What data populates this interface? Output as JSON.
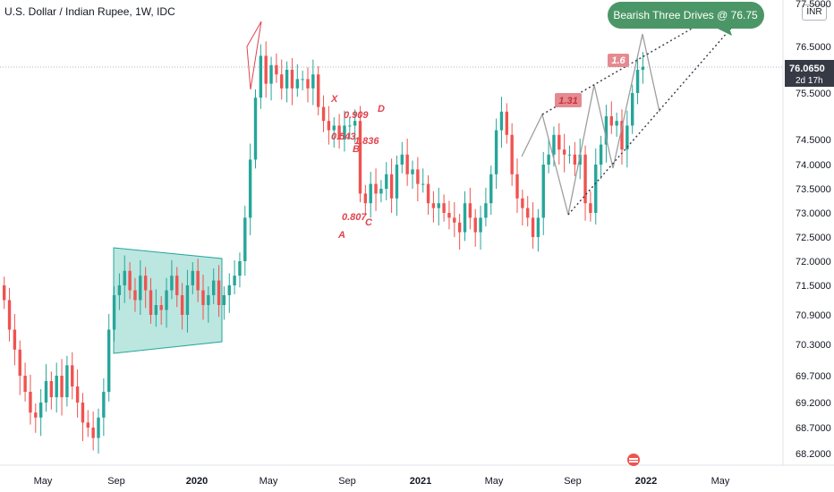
{
  "header": {
    "title": "U.S. Dollar / Indian Rupee, 1W, IDC",
    "currency": "INR"
  },
  "callout": {
    "text": "Bearish Three Drives @ 76.75",
    "color": "#4b9666"
  },
  "current_price": {
    "value": "76.0650",
    "countdown": "2d 17h",
    "color": "#363a45"
  },
  "colors": {
    "up": "#26a69a",
    "down": "#ef5350",
    "label": "#e0434f",
    "box": "#8fd6cc",
    "drive_line": "#9e9e9e"
  },
  "pattern_labels": {
    "X": "X",
    "A": "A",
    "B": "B",
    "C": "C",
    "D": "D",
    "r_xb": "0.909",
    "r_ab": "0.543",
    "r_bc": "0.807",
    "r_cd": "1.836",
    "drive_ratio1": "1.31",
    "drive_ratio2": "1.6"
  },
  "chart_data": {
    "type": "candlestick",
    "symbol": "USDINR",
    "interval": "1W",
    "y_axis": {
      "ticks": [
        "77.5000",
        "76.5000",
        "75.5000",
        "74.5000",
        "74.0000",
        "73.5000",
        "73.0000",
        "72.5000",
        "72.0000",
        "71.5000",
        "70.9000",
        "70.3000",
        "69.7000",
        "69.2000",
        "68.7000",
        "68.2000"
      ],
      "ylim": [
        68.0,
        77.7
      ]
    },
    "x_axis": {
      "ticks": [
        "May",
        "Sep",
        "2020",
        "May",
        "Sep",
        "2021",
        "May",
        "Sep",
        "2022",
        "May"
      ]
    },
    "closes": [
      71.2,
      70.6,
      70.2,
      69.7,
      69.4,
      69.0,
      68.9,
      69.2,
      69.6,
      69.3,
      69.7,
      69.3,
      69.9,
      69.5,
      69.2,
      68.8,
      68.7,
      68.5,
      68.9,
      69.4,
      70.6,
      71.3,
      71.5,
      71.8,
      71.4,
      71.2,
      71.7,
      71.4,
      70.9,
      71.1,
      71.0,
      71.4,
      71.7,
      71.3,
      70.9,
      71.5,
      71.8,
      71.4,
      71.1,
      71.3,
      71.6,
      71.1,
      71.3,
      71.5,
      71.7,
      72.0,
      72.9,
      74.1,
      75.4,
      76.3,
      75.7,
      76.1,
      75.9,
      75.6,
      76.0,
      75.6,
      75.8,
      75.8,
      75.6,
      75.9,
      75.2,
      74.9,
      74.7,
      74.8,
      74.5,
      74.8,
      74.8,
      74.9,
      73.4,
      73.2,
      73.6,
      73.4,
      73.5,
      73.8,
      73.3,
      74.0,
      74.2,
      73.8,
      73.9,
      73.6,
      73.6,
      73.2,
      73.1,
      73.2,
      73.0,
      72.9,
      72.8,
      72.6,
      73.2,
      72.9,
      72.6,
      72.9,
      73.2,
      73.8,
      74.7,
      75.1,
      74.6,
      73.8,
      73.3,
      73.1,
      72.9,
      72.5,
      72.9,
      74.0,
      74.2,
      74.6,
      74.3,
      74.2,
      74.2,
      74.0,
      74.2,
      73.2,
      73.0,
      74.0,
      74.4,
      75.0,
      74.8,
      74.9,
      74.3,
      74.8,
      75.5,
      76.0,
      76.065
    ]
  }
}
